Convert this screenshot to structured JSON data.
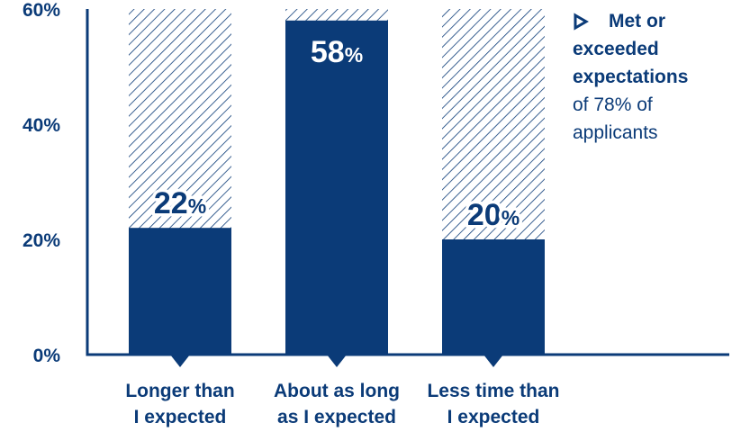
{
  "colors": {
    "bar": "#0b3b78",
    "text": "#0b3b78",
    "hatch_bg": "#ffffff",
    "hatch_line": "#0b3b78"
  },
  "legend": {
    "icon": "triangle-right-outline-icon",
    "line1": "Met or",
    "line2": "exceeded",
    "line3": "expectations",
    "line4": "of 78% of",
    "line5": "applicants"
  },
  "chart_data": {
    "type": "bar",
    "ylim": [
      0,
      60
    ],
    "yticks": [
      "0%",
      "20%",
      "40%",
      "60%"
    ],
    "ytick_values": [
      0,
      20,
      40,
      60
    ],
    "categories": [
      "Longer than I expected",
      "About as long as I expected",
      "Less time than I expected"
    ],
    "category_lines": [
      [
        "Longer than",
        "I expected"
      ],
      [
        "About as long",
        "as I expected"
      ],
      [
        "Less time than",
        "I expected"
      ]
    ],
    "values": [
      22,
      58,
      20
    ],
    "data_labels": [
      {
        "num": "22",
        "unit": "%"
      },
      {
        "num": "58",
        "unit": "%"
      },
      {
        "num": "20",
        "unit": "%"
      }
    ],
    "grid": false,
    "legend_position": "top-right"
  }
}
